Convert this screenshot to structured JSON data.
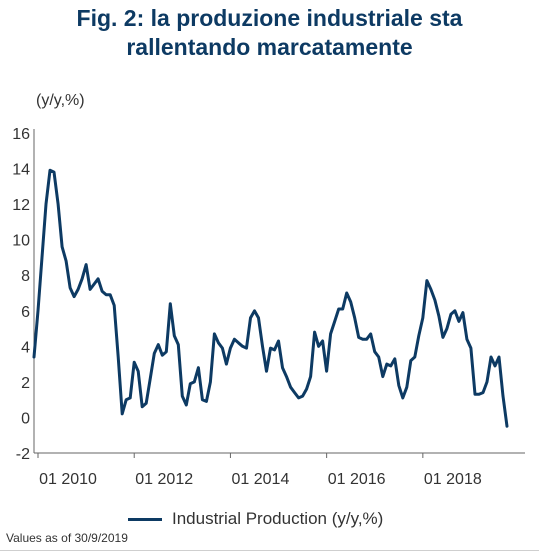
{
  "chart_data": {
    "type": "line",
    "title_line1": "Fig. 2: la produzione industriale sta",
    "title_line2": "rallentando marcatamente",
    "ylabel": "(y/y,%)",
    "ylim": [
      -2,
      16
    ],
    "yticks": [
      16,
      14,
      12,
      10,
      8,
      6,
      4,
      2,
      0,
      -2
    ],
    "xlim": [
      "2009-12",
      "2019-07"
    ],
    "xticks": [
      {
        "date": "2010-01",
        "label": "01 2010"
      },
      {
        "date": "2012-01",
        "label": "01 2012"
      },
      {
        "date": "2014-01",
        "label": "01 2014"
      },
      {
        "date": "2016-01",
        "label": "01 2016"
      },
      {
        "date": "2018-01",
        "label": "01 2018"
      }
    ],
    "grid": false,
    "legend_position": "bottom",
    "series": [
      {
        "name": "Industrial Production (y/y,%)",
        "color": "#0d3a63",
        "points": [
          [
            "2009-12",
            3.4
          ],
          [
            "2010-01",
            6.0
          ],
          [
            "2010-02",
            9.0
          ],
          [
            "2010-03",
            12.0
          ],
          [
            "2010-04",
            13.9
          ],
          [
            "2010-05",
            13.8
          ],
          [
            "2010-06",
            12.0
          ],
          [
            "2010-07",
            9.6
          ],
          [
            "2010-08",
            8.8
          ],
          [
            "2010-09",
            7.3
          ],
          [
            "2010-10",
            6.8
          ],
          [
            "2010-11",
            7.2
          ],
          [
            "2010-12",
            7.8
          ],
          [
            "2011-01",
            8.6
          ],
          [
            "2011-02",
            7.2
          ],
          [
            "2011-03",
            7.5
          ],
          [
            "2011-04",
            7.8
          ],
          [
            "2011-05",
            7.1
          ],
          [
            "2011-06",
            6.9
          ],
          [
            "2011-07",
            6.9
          ],
          [
            "2011-08",
            6.3
          ],
          [
            "2011-09",
            3.4
          ],
          [
            "2011-10",
            0.2
          ],
          [
            "2011-11",
            1.0
          ],
          [
            "2011-12",
            1.1
          ],
          [
            "2012-01",
            3.1
          ],
          [
            "2012-02",
            2.6
          ],
          [
            "2012-03",
            0.6
          ],
          [
            "2012-04",
            0.8
          ],
          [
            "2012-05",
            2.2
          ],
          [
            "2012-06",
            3.6
          ],
          [
            "2012-07",
            4.1
          ],
          [
            "2012-08",
            3.5
          ],
          [
            "2012-09",
            3.7
          ],
          [
            "2012-10",
            6.4
          ],
          [
            "2012-11",
            4.6
          ],
          [
            "2012-12",
            4.1
          ],
          [
            "2013-01",
            1.2
          ],
          [
            "2013-02",
            0.7
          ],
          [
            "2013-03",
            1.9
          ],
          [
            "2013-04",
            2.0
          ],
          [
            "2013-05",
            2.8
          ],
          [
            "2013-06",
            1.0
          ],
          [
            "2013-07",
            0.9
          ],
          [
            "2013-08",
            2.0
          ],
          [
            "2013-09",
            4.7
          ],
          [
            "2013-10",
            4.2
          ],
          [
            "2013-11",
            3.9
          ],
          [
            "2013-12",
            3.0
          ],
          [
            "2014-01",
            3.9
          ],
          [
            "2014-02",
            4.4
          ],
          [
            "2014-03",
            4.2
          ],
          [
            "2014-04",
            4.0
          ],
          [
            "2014-05",
            3.9
          ],
          [
            "2014-06",
            5.6
          ],
          [
            "2014-07",
            6.0
          ],
          [
            "2014-08",
            5.6
          ],
          [
            "2014-09",
            4.0
          ],
          [
            "2014-10",
            2.6
          ],
          [
            "2014-11",
            3.9
          ],
          [
            "2014-12",
            3.8
          ],
          [
            "2015-01",
            4.3
          ],
          [
            "2015-02",
            2.8
          ],
          [
            "2015-03",
            2.3
          ],
          [
            "2015-04",
            1.7
          ],
          [
            "2015-05",
            1.4
          ],
          [
            "2015-06",
            1.1
          ],
          [
            "2015-07",
            1.2
          ],
          [
            "2015-08",
            1.6
          ],
          [
            "2015-09",
            2.3
          ],
          [
            "2015-10",
            4.8
          ],
          [
            "2015-11",
            4.0
          ],
          [
            "2015-12",
            4.3
          ],
          [
            "2016-01",
            2.6
          ],
          [
            "2016-02",
            4.7
          ],
          [
            "2016-03",
            5.4
          ],
          [
            "2016-04",
            6.1
          ],
          [
            "2016-05",
            6.1
          ],
          [
            "2016-06",
            7.0
          ],
          [
            "2016-07",
            6.5
          ],
          [
            "2016-08",
            5.6
          ],
          [
            "2016-09",
            4.5
          ],
          [
            "2016-10",
            4.4
          ],
          [
            "2016-11",
            4.4
          ],
          [
            "2016-12",
            4.7
          ],
          [
            "2017-01",
            3.7
          ],
          [
            "2017-02",
            3.4
          ],
          [
            "2017-03",
            2.3
          ],
          [
            "2017-04",
            3.0
          ],
          [
            "2017-05",
            2.9
          ],
          [
            "2017-06",
            3.3
          ],
          [
            "2017-07",
            1.8
          ],
          [
            "2017-08",
            1.1
          ],
          [
            "2017-09",
            1.7
          ],
          [
            "2017-10",
            3.2
          ],
          [
            "2017-11",
            3.4
          ],
          [
            "2017-12",
            4.6
          ],
          [
            "2018-01",
            5.6
          ],
          [
            "2018-02",
            7.7
          ],
          [
            "2018-03",
            7.2
          ],
          [
            "2018-04",
            6.6
          ],
          [
            "2018-05",
            5.7
          ],
          [
            "2018-06",
            4.5
          ],
          [
            "2018-07",
            5.0
          ],
          [
            "2018-08",
            5.8
          ],
          [
            "2018-09",
            6.0
          ],
          [
            "2018-10",
            5.4
          ],
          [
            "2018-11",
            5.9
          ],
          [
            "2018-12",
            4.4
          ],
          [
            "2019-01",
            3.9
          ],
          [
            "2019-02",
            1.3
          ],
          [
            "2019-03",
            1.3
          ],
          [
            "2019-04",
            1.4
          ],
          [
            "2019-05",
            2.0
          ],
          [
            "2019-06",
            3.4
          ],
          [
            "2019-07",
            2.9
          ],
          [
            "2019-08",
            3.4
          ],
          [
            "2019-09",
            1.2
          ],
          [
            "2019-10",
            -0.5
          ]
        ]
      }
    ]
  },
  "legend": {
    "label": "Industrial Production (y/y,%)"
  },
  "footnote": "Values as of 30/9/2019"
}
